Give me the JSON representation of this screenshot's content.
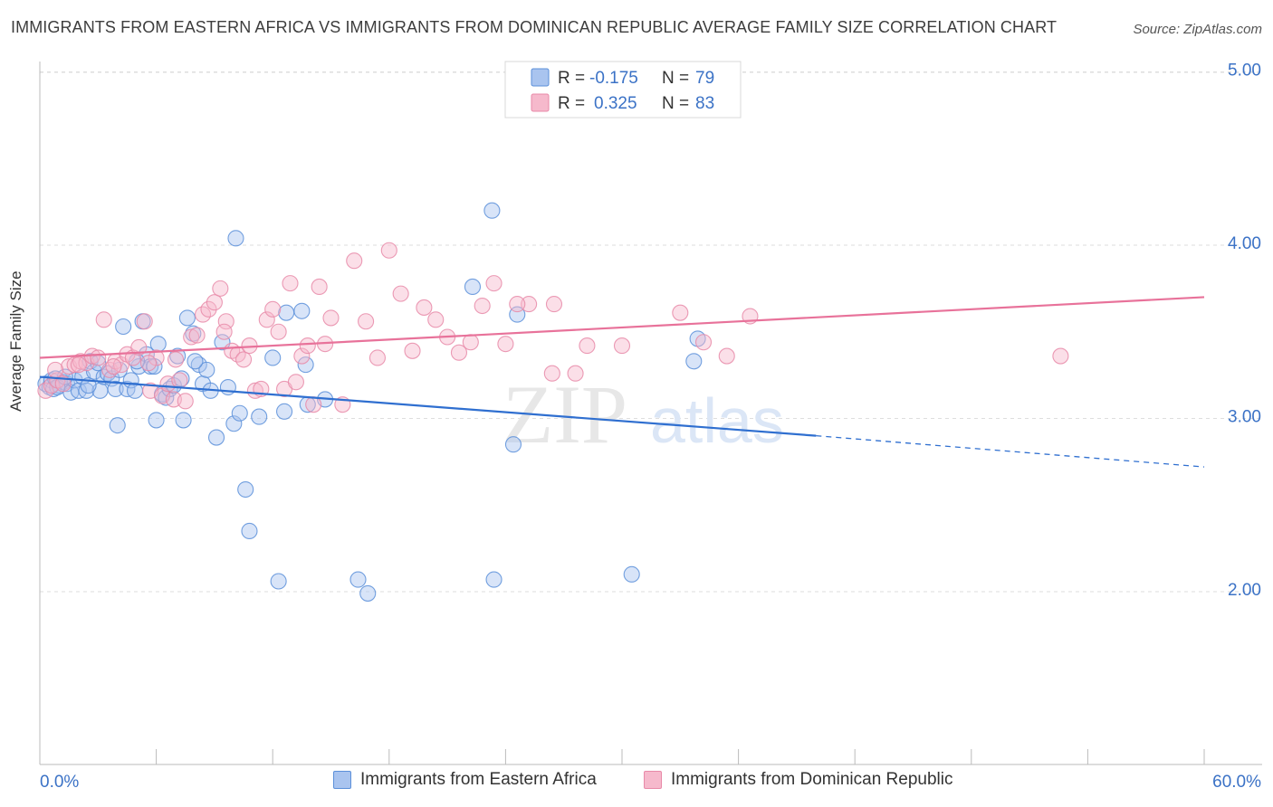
{
  "header": {
    "title": "IMMIGRANTS FROM EASTERN AFRICA VS IMMIGRANTS FROM DOMINICAN REPUBLIC AVERAGE FAMILY SIZE CORRELATION CHART",
    "source": "Source: ZipAtlas.com"
  },
  "colors": {
    "blue_fill": "#a9c4ef",
    "blue_stroke": "#5b8fd9",
    "blue_line": "#2f6fd0",
    "pink_fill": "#f6b9cc",
    "pink_stroke": "#e889a8",
    "pink_line": "#e8729a",
    "axis_text": "#3b72c6",
    "grid": "#dedede"
  },
  "legend": {
    "r_label": "R =",
    "n_label": "N =",
    "series": [
      {
        "r": "-0.175",
        "n": "79"
      },
      {
        "r": "0.325",
        "n": "83"
      }
    ]
  },
  "watermark": {
    "zip": "ZIP",
    "atlas": "atlas"
  },
  "chart_data": {
    "type": "scatter",
    "title": "IMMIGRANTS FROM EASTERN AFRICA VS IMMIGRANTS FROM DOMINICAN REPUBLIC AVERAGE FAMILY SIZE CORRELATION CHART",
    "xlabel": "",
    "ylabel": "Average Family Size",
    "xlim": [
      0,
      60
    ],
    "ylim": [
      1.0,
      5.2
    ],
    "x_tick_labels": [
      "0.0%",
      "60.0%"
    ],
    "y_ticks": [
      2.0,
      3.0,
      4.0,
      5.0
    ],
    "y_tick_labels": [
      "2.00",
      "3.00",
      "4.00",
      "5.00"
    ],
    "grid": true,
    "series": [
      {
        "name": "Immigrants from Eastern Africa",
        "color": "blue",
        "r": -0.175,
        "n": 79,
        "trend": {
          "x0": 0,
          "y0": 3.24,
          "x1": 40,
          "y1": 2.9,
          "x_dash_end": 60,
          "y_dash_end": 2.72
        },
        "points": [
          [
            0.3,
            3.2
          ],
          [
            0.5,
            3.18
          ],
          [
            0.6,
            3.22
          ],
          [
            0.7,
            3.17
          ],
          [
            0.8,
            3.23
          ],
          [
            1.0,
            3.19
          ],
          [
            1.2,
            3.21
          ],
          [
            1.4,
            3.2
          ],
          [
            1.6,
            3.15
          ],
          [
            1.8,
            3.22
          ],
          [
            2.0,
            3.16
          ],
          [
            2.2,
            3.24
          ],
          [
            2.4,
            3.16
          ],
          [
            2.6,
            3.33
          ],
          [
            2.8,
            3.27
          ],
          [
            3.1,
            3.16
          ],
          [
            3.3,
            3.24
          ],
          [
            3.5,
            3.26
          ],
          [
            3.7,
            3.23
          ],
          [
            3.9,
            3.17
          ],
          [
            4.1,
            3.28
          ],
          [
            4.3,
            3.53
          ],
          [
            4.5,
            3.17
          ],
          [
            4.7,
            3.22
          ],
          [
            4.9,
            3.16
          ],
          [
            5.1,
            3.3
          ],
          [
            5.3,
            3.56
          ],
          [
            5.5,
            3.37
          ],
          [
            5.7,
            3.3
          ],
          [
            5.9,
            3.3
          ],
          [
            6.1,
            3.43
          ],
          [
            6.3,
            3.14
          ],
          [
            6.5,
            3.12
          ],
          [
            6.7,
            3.17
          ],
          [
            6.9,
            3.19
          ],
          [
            7.1,
            3.36
          ],
          [
            7.3,
            3.23
          ],
          [
            7.6,
            3.58
          ],
          [
            7.9,
            3.49
          ],
          [
            8.2,
            3.31
          ],
          [
            8.4,
            3.2
          ],
          [
            8.6,
            3.28
          ],
          [
            8.8,
            3.16
          ],
          [
            9.1,
            2.89
          ],
          [
            9.4,
            3.44
          ],
          [
            9.7,
            3.18
          ],
          [
            10.0,
            2.97
          ],
          [
            10.1,
            4.04
          ],
          [
            10.3,
            3.03
          ],
          [
            10.6,
            2.59
          ],
          [
            10.8,
            2.35
          ],
          [
            11.3,
            3.01
          ],
          [
            12.0,
            3.35
          ],
          [
            12.3,
            2.06
          ],
          [
            12.6,
            3.04
          ],
          [
            12.7,
            3.61
          ],
          [
            13.5,
            3.62
          ],
          [
            13.7,
            3.31
          ],
          [
            13.8,
            3.08
          ],
          [
            14.7,
            3.11
          ],
          [
            16.4,
            2.07
          ],
          [
            16.9,
            1.99
          ],
          [
            22.3,
            3.76
          ],
          [
            23.3,
            4.2
          ],
          [
            23.4,
            2.07
          ],
          [
            24.4,
            2.85
          ],
          [
            24.6,
            3.6
          ],
          [
            30.5,
            2.1
          ],
          [
            33.7,
            3.33
          ],
          [
            33.9,
            3.46
          ],
          [
            0.9,
            3.18
          ],
          [
            1.3,
            3.24
          ],
          [
            3.0,
            3.32
          ],
          [
            4.0,
            2.96
          ],
          [
            5.0,
            3.33
          ],
          [
            6.0,
            2.99
          ],
          [
            7.4,
            2.99
          ],
          [
            8.0,
            3.33
          ],
          [
            2.5,
            3.19
          ]
        ]
      },
      {
        "name": "Immigrants from Dominican Republic",
        "color": "pink",
        "r": 0.325,
        "n": 83,
        "trend": {
          "x0": 0,
          "y0": 3.35,
          "x1": 60,
          "y1": 3.7
        },
        "points": [
          [
            0.3,
            3.16
          ],
          [
            0.6,
            3.19
          ],
          [
            0.9,
            3.22
          ],
          [
            1.2,
            3.2
          ],
          [
            1.5,
            3.3
          ],
          [
            1.8,
            3.31
          ],
          [
            2.1,
            3.33
          ],
          [
            2.4,
            3.32
          ],
          [
            2.7,
            3.36
          ],
          [
            3.0,
            3.35
          ],
          [
            3.3,
            3.57
          ],
          [
            3.6,
            3.28
          ],
          [
            3.9,
            3.33
          ],
          [
            4.2,
            3.31
          ],
          [
            4.5,
            3.37
          ],
          [
            4.8,
            3.35
          ],
          [
            5.1,
            3.41
          ],
          [
            5.4,
            3.56
          ],
          [
            5.7,
            3.16
          ],
          [
            6.0,
            3.35
          ],
          [
            6.3,
            3.13
          ],
          [
            6.6,
            3.2
          ],
          [
            6.9,
            3.11
          ],
          [
            7.2,
            3.22
          ],
          [
            7.5,
            3.1
          ],
          [
            7.8,
            3.47
          ],
          [
            8.1,
            3.48
          ],
          [
            8.4,
            3.6
          ],
          [
            8.7,
            3.63
          ],
          [
            9.0,
            3.67
          ],
          [
            9.3,
            3.75
          ],
          [
            9.6,
            3.56
          ],
          [
            9.9,
            3.39
          ],
          [
            10.2,
            3.37
          ],
          [
            10.5,
            3.34
          ],
          [
            10.8,
            3.42
          ],
          [
            11.1,
            3.16
          ],
          [
            11.4,
            3.17
          ],
          [
            11.7,
            3.57
          ],
          [
            12.0,
            3.63
          ],
          [
            12.3,
            3.5
          ],
          [
            12.6,
            3.17
          ],
          [
            12.9,
            3.78
          ],
          [
            13.2,
            3.21
          ],
          [
            13.5,
            3.36
          ],
          [
            13.8,
            3.42
          ],
          [
            14.1,
            3.08
          ],
          [
            14.4,
            3.76
          ],
          [
            14.7,
            3.43
          ],
          [
            15.0,
            3.58
          ],
          [
            15.6,
            3.08
          ],
          [
            16.2,
            3.91
          ],
          [
            16.8,
            3.56
          ],
          [
            17.4,
            3.35
          ],
          [
            18.0,
            3.97
          ],
          [
            18.6,
            3.72
          ],
          [
            19.2,
            3.39
          ],
          [
            19.8,
            3.64
          ],
          [
            20.4,
            3.57
          ],
          [
            21.0,
            3.47
          ],
          [
            21.6,
            3.38
          ],
          [
            22.2,
            3.44
          ],
          [
            22.8,
            3.65
          ],
          [
            23.4,
            3.78
          ],
          [
            24.0,
            3.43
          ],
          [
            25.2,
            3.66
          ],
          [
            26.4,
            3.26
          ],
          [
            27.6,
            3.26
          ],
          [
            28.2,
            3.42
          ],
          [
            30.0,
            3.42
          ],
          [
            33.0,
            3.61
          ],
          [
            34.2,
            3.44
          ],
          [
            35.4,
            3.36
          ],
          [
            36.6,
            3.59
          ],
          [
            52.6,
            3.36
          ],
          [
            0.8,
            3.28
          ],
          [
            2.0,
            3.31
          ],
          [
            3.8,
            3.3
          ],
          [
            5.6,
            3.32
          ],
          [
            7.0,
            3.34
          ],
          [
            9.5,
            3.5
          ],
          [
            24.6,
            3.66
          ],
          [
            26.5,
            3.66
          ]
        ]
      }
    ]
  },
  "bottom_legend": {
    "items": [
      {
        "label": "Immigrants from Eastern Africa"
      },
      {
        "label": "Immigrants from Dominican Republic"
      }
    ]
  }
}
